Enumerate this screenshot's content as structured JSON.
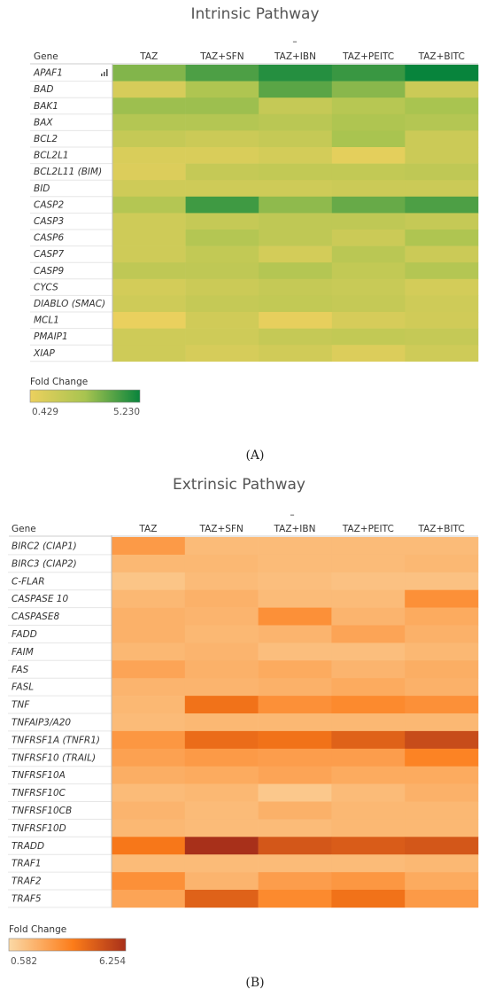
{
  "panels": [
    {
      "title": "Intrinsic Pathway",
      "gene_header": "Gene",
      "legend_title": "Fold Change",
      "legend_min": "0.429",
      "legend_max": "5.230",
      "panel_label": "(A)",
      "colors": {
        "low": "#ecd05e",
        "mid": "#a8c450",
        "high": "#08843c"
      },
      "chart_data": {
        "type": "heatmap",
        "title": "Intrinsic Pathway",
        "columns": [
          "TAZ",
          "TAZ+SFN",
          "TAZ+IBN",
          "TAZ+PEITC",
          "TAZ+BITC"
        ],
        "rows": [
          "APAF1",
          "BAD",
          "BAK1",
          "BAX",
          "BCL2",
          "BCL2L1",
          "BCL2L11 (BIM)",
          "BID",
          "CASP2",
          "CASP3",
          "CASP6",
          "CASP7",
          "CASP9",
          "CYCS",
          "DIABLO (SMAC)",
          "MCL1",
          "PMAIP1",
          "XIAP"
        ],
        "values": [
          [
            3.4,
            4.2,
            4.8,
            4.5,
            5.23
          ],
          [
            1.2,
            2.6,
            4.0,
            3.3,
            1.6
          ],
          [
            3.0,
            3.0,
            1.8,
            2.3,
            2.8
          ],
          [
            2.4,
            2.4,
            2.2,
            2.6,
            2.4
          ],
          [
            1.8,
            1.6,
            1.8,
            2.8,
            1.6
          ],
          [
            1.1,
            1.1,
            1.3,
            0.7,
            1.6
          ],
          [
            1.0,
            1.8,
            1.9,
            1.9,
            2.0
          ],
          [
            1.5,
            1.5,
            1.5,
            1.6,
            1.6
          ],
          [
            2.4,
            4.4,
            3.2,
            3.8,
            4.2
          ],
          [
            1.5,
            1.8,
            2.0,
            2.0,
            1.8
          ],
          [
            1.5,
            2.4,
            2.0,
            1.6,
            2.6
          ],
          [
            1.5,
            1.9,
            1.3,
            2.2,
            1.6
          ],
          [
            2.0,
            2.0,
            2.4,
            1.9,
            2.4
          ],
          [
            1.3,
            1.6,
            1.8,
            1.7,
            1.3
          ],
          [
            1.5,
            1.8,
            1.9,
            1.8,
            1.5
          ],
          [
            0.5,
            1.4,
            0.6,
            1.2,
            1.4
          ],
          [
            1.5,
            1.5,
            1.8,
            1.9,
            1.8
          ],
          [
            1.5,
            1.2,
            1.4,
            1.0,
            1.5
          ]
        ],
        "vmin": 0.429,
        "vmax": 5.23,
        "xlabel": "",
        "ylabel": "Gene"
      }
    },
    {
      "title": "Extrinsic Pathway",
      "gene_header": "Gene",
      "legend_title": "Fold Change",
      "legend_min": "0.582",
      "legend_max": "6.254",
      "panel_label": "(B)",
      "colors": {
        "low": "#fbd9a6",
        "mid": "#fc7c19",
        "high": "#a8301a"
      },
      "chart_data": {
        "type": "heatmap",
        "title": "Extrinsic Pathway",
        "columns": [
          "TAZ",
          "TAZ+SFN",
          "TAZ+IBN",
          "TAZ+PEITC",
          "TAZ+BITC"
        ],
        "rows": [
          "BIRC2 (CIAP1)",
          "BIRC3 (CIAP2)",
          "C-FLAR",
          "CASPASE 10",
          "CASPASE8",
          "FADD",
          "FAIM",
          "FAS",
          "FASL",
          "TNF",
          "TNFAIP3/A20",
          "TNFRSF1A (TNFR1)",
          "TNFRSF10 (TRAIL)",
          "TNFRSF10A",
          "TNFRSF10C",
          "TNFRSF10CB",
          "TNFRSF10D",
          "TRADD",
          "TRAF1",
          "TRAF2",
          "TRAF5"
        ],
        "values": [
          [
            2.5,
            1.5,
            1.5,
            1.5,
            1.5
          ],
          [
            1.6,
            1.6,
            1.5,
            1.5,
            1.6
          ],
          [
            1.2,
            1.5,
            1.4,
            1.3,
            1.3
          ],
          [
            1.6,
            1.8,
            1.5,
            1.5,
            2.8
          ],
          [
            1.8,
            1.7,
            2.8,
            1.7,
            2.0
          ],
          [
            1.8,
            1.6,
            1.7,
            2.2,
            1.8
          ],
          [
            1.6,
            1.7,
            1.4,
            1.4,
            1.6
          ],
          [
            2.2,
            1.8,
            2.0,
            1.7,
            1.9
          ],
          [
            1.7,
            1.7,
            1.8,
            2.0,
            1.8
          ],
          [
            1.6,
            3.8,
            2.8,
            3.0,
            2.8
          ],
          [
            1.5,
            1.6,
            1.6,
            1.6,
            1.6
          ],
          [
            2.6,
            4.0,
            3.8,
            4.4,
            5.2
          ],
          [
            2.3,
            2.5,
            2.4,
            2.4,
            3.2
          ],
          [
            1.9,
            2.0,
            2.2,
            2.0,
            2.0
          ],
          [
            1.5,
            1.6,
            1.1,
            1.5,
            1.8
          ],
          [
            1.7,
            1.5,
            1.8,
            1.6,
            1.6
          ],
          [
            1.6,
            1.5,
            1.5,
            1.6,
            1.6
          ],
          [
            3.6,
            6.254,
            4.8,
            4.6,
            4.8
          ],
          [
            1.5,
            1.5,
            1.5,
            1.5,
            1.6
          ],
          [
            2.8,
            1.7,
            2.4,
            2.6,
            2.0
          ],
          [
            2.2,
            4.4,
            3.0,
            3.8,
            2.5
          ]
        ],
        "vmin": 0.582,
        "vmax": 6.254,
        "xlabel": "",
        "ylabel": "Gene"
      }
    }
  ]
}
